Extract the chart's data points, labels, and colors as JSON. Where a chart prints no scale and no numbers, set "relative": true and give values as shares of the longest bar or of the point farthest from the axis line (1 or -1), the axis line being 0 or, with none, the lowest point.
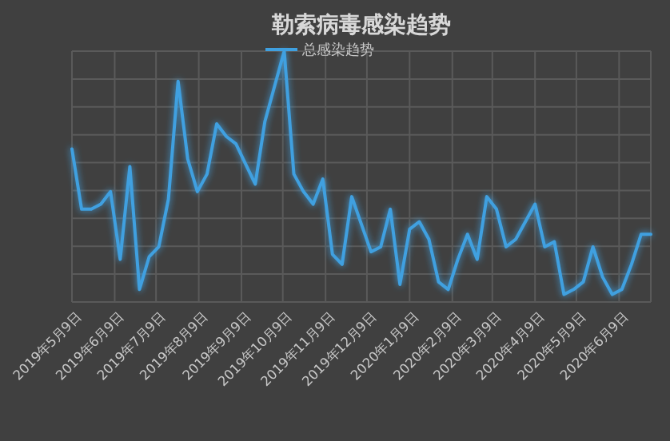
{
  "chart_data": {
    "type": "line",
    "title": "勒索病毒感染趋势",
    "relative": true,
    "grid": true,
    "legend": "top",
    "marker": "none",
    "line_style": "solid",
    "x": [
      "2019-05-09",
      "2019-05-16",
      "2019-05-23",
      "2019-05-30",
      "2019-06-06",
      "2019-06-13",
      "2019-06-20",
      "2019-06-27",
      "2019-07-04",
      "2019-07-11",
      "2019-07-18",
      "2019-07-25",
      "2019-08-01",
      "2019-08-08",
      "2019-08-15",
      "2019-08-22",
      "2019-08-29",
      "2019-09-05",
      "2019-09-12",
      "2019-09-19",
      "2019-09-26",
      "2019-10-03",
      "2019-10-10",
      "2019-10-17",
      "2019-10-24",
      "2019-10-31",
      "2019-11-07",
      "2019-11-14",
      "2019-11-21",
      "2019-11-28",
      "2019-12-05",
      "2019-12-12",
      "2019-12-19",
      "2019-12-26",
      "2020-01-02",
      "2020-01-09",
      "2020-01-16",
      "2020-01-23",
      "2020-01-30",
      "2020-02-06",
      "2020-02-13",
      "2020-02-20",
      "2020-02-27",
      "2020-03-05",
      "2020-03-12",
      "2020-03-19",
      "2020-03-26",
      "2020-04-02",
      "2020-04-09",
      "2020-04-16",
      "2020-04-23",
      "2020-04-30",
      "2020-05-07",
      "2020-05-14",
      "2020-05-21",
      "2020-05-28",
      "2020-06-04",
      "2020-06-11",
      "2020-06-18",
      "2020-06-25",
      "2020-07-02"
    ],
    "xlim": [
      "2019-05-09",
      "2020-07-02"
    ],
    "xticks": [
      {
        "value": "2019-05-09",
        "label": "2019年5月9日"
      },
      {
        "value": "2019-06-09",
        "label": "2019年6月9日"
      },
      {
        "value": "2019-07-09",
        "label": "2019年7月9日"
      },
      {
        "value": "2019-08-09",
        "label": "2019年8月9日"
      },
      {
        "value": "2019-09-09",
        "label": "2019年9月9日"
      },
      {
        "value": "2019-10-09",
        "label": "2019年10月9日"
      },
      {
        "value": "2019-11-09",
        "label": "2019年11月9日"
      },
      {
        "value": "2019-12-09",
        "label": "2019年12月9日"
      },
      {
        "value": "2020-01-09",
        "label": "2020年1月9日"
      },
      {
        "value": "2020-02-09",
        "label": "2020年2月9日"
      },
      {
        "value": "2020-03-09",
        "label": "2020年3月9日"
      },
      {
        "value": "2020-04-09",
        "label": "2020年4月9日"
      },
      {
        "value": "2020-05-09",
        "label": "2020年5月9日"
      },
      {
        "value": "2020-06-09",
        "label": "2020年6月9日"
      }
    ],
    "series": [
      {
        "name": "总感染趋势",
        "color": "#3fa0e0",
        "values": [
          0.61,
          0.37,
          0.37,
          0.39,
          0.44,
          0.17,
          0.54,
          0.05,
          0.18,
          0.22,
          0.41,
          0.88,
          0.57,
          0.44,
          0.51,
          0.71,
          0.66,
          0.63,
          0.55,
          0.47,
          0.72,
          0.86,
          1,
          0.51,
          0.44,
          0.39,
          0.49,
          0.19,
          0.15,
          0.42,
          0.31,
          0.2,
          0.22,
          0.37,
          0.07,
          0.29,
          0.32,
          0.25,
          0.08,
          0.05,
          0.17,
          0.27,
          0.17,
          0.42,
          0.37,
          0.22,
          0.25,
          0.32,
          0.39,
          0.22,
          0.24,
          0.03,
          0.05,
          0.08,
          0.22,
          0.1,
          0.03,
          0.05,
          0.15,
          0.27,
          0.27
        ]
      }
    ]
  }
}
